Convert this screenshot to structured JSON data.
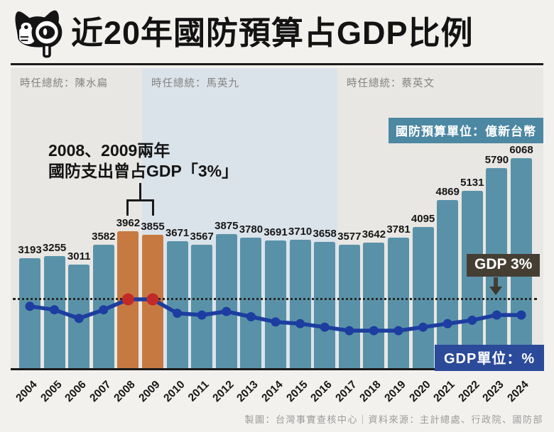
{
  "header": {
    "title": "近20年國防預算占GDP比例",
    "logo": "factcheck-cat-with-magnifier"
  },
  "eras": [
    {
      "label": "時任總統：陳水扁"
    },
    {
      "label": "時任總統：馬英九"
    },
    {
      "label": "時任總統：蔡英文"
    }
  ],
  "annotation": {
    "line1": "2008、2009兩年",
    "line2": "國防支出曾占GDP「3%」"
  },
  "badges": {
    "budget_unit": "國防預算單位：億新台幣",
    "gdp_reference": "GDP 3%",
    "gdp_unit": "GDP單位：%"
  },
  "footer": "製圖：台灣事實查核中心｜資料來源：主計總處、行政院、國防部",
  "chart_data": {
    "type": "bar",
    "title": "近20年國防預算占GDP比例",
    "categories": [
      "2004",
      "2005",
      "2006",
      "2007",
      "2008",
      "2009",
      "2010",
      "2011",
      "2012",
      "2013",
      "2014",
      "2015",
      "2016",
      "2017",
      "2018",
      "2019",
      "2020",
      "2021",
      "2022",
      "2023",
      "2024"
    ],
    "series": [
      {
        "name": "國防預算（億新台幣）",
        "type": "bar",
        "values": [
          3193,
          3255,
          3011,
          3582,
          3962,
          3855,
          3671,
          3567,
          3875,
          3780,
          3691,
          3710,
          3658,
          3577,
          3642,
          3781,
          4095,
          4869,
          5131,
          5790,
          6068
        ]
      },
      {
        "name": "國防預算占GDP比例（%）",
        "type": "line",
        "values": [
          2.8,
          2.7,
          2.45,
          2.7,
          3.0,
          3.0,
          2.6,
          2.55,
          2.65,
          2.5,
          2.35,
          2.3,
          2.2,
          2.1,
          2.1,
          2.1,
          2.2,
          2.3,
          2.4,
          2.55,
          2.55
        ],
        "note": "line values unlabeled in image; estimated from pixel positions relative to the 3% dotted reference line"
      }
    ],
    "highlight": {
      "years": [
        "2008",
        "2009"
      ],
      "indices": [
        4,
        5
      ]
    },
    "reference_line": {
      "value": 3.0,
      "label": "GDP 3%",
      "style": "dotted"
    },
    "grid": false,
    "legend_position": "none",
    "ylim_bar": [
      0,
      6068
    ],
    "colors": {
      "bar": "#5992a8",
      "bar_highlight": "#c67a41",
      "line": "#1d3da0",
      "dot_highlight": "#c22a28",
      "zone_gray": "#e8e7e3",
      "zone_blue": "#dbe3ea",
      "badge_teal": "#4d88a3",
      "badge_dark": "#453e33",
      "badge_blue": "#2b4a9a"
    }
  }
}
